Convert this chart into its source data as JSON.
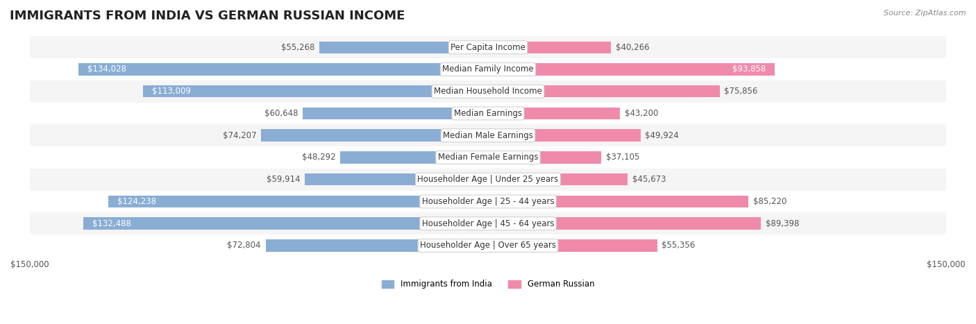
{
  "title": "IMMIGRANTS FROM INDIA VS GERMAN RUSSIAN INCOME",
  "source": "Source: ZipAtlas.com",
  "categories": [
    "Per Capita Income",
    "Median Family Income",
    "Median Household Income",
    "Median Earnings",
    "Median Male Earnings",
    "Median Female Earnings",
    "Householder Age | Under 25 years",
    "Householder Age | 25 - 44 years",
    "Householder Age | 45 - 64 years",
    "Householder Age | Over 65 years"
  ],
  "india_values": [
    55268,
    134028,
    113009,
    60648,
    74207,
    48292,
    59914,
    124238,
    132488,
    72804
  ],
  "german_russian_values": [
    40266,
    93858,
    75856,
    43200,
    49924,
    37105,
    45673,
    85220,
    89398,
    55356
  ],
  "india_color": "#8aadd4",
  "german_russian_color": "#f08aab",
  "india_label": "Immigrants from India",
  "german_russian_label": "German Russian",
  "x_max": 150000,
  "background_color": "#ffffff",
  "row_bg_light": "#f5f5f5",
  "row_bg_white": "#ffffff",
  "bar_height": 0.55,
  "title_fontsize": 13,
  "label_fontsize": 8.5,
  "value_fontsize": 8.5,
  "source_fontsize": 8
}
